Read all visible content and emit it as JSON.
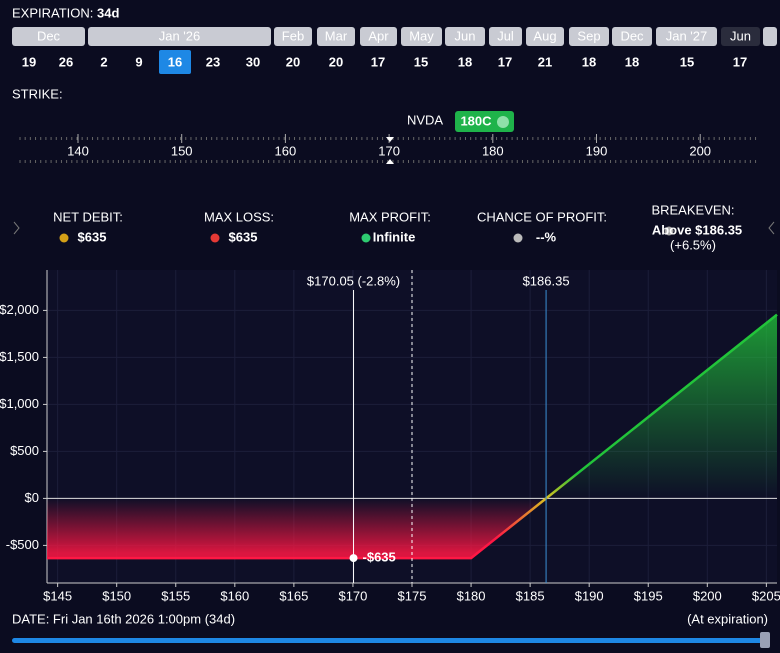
{
  "expiration": {
    "label": "EXPIRATION:",
    "days_left": "34d",
    "months": [
      {
        "label": "Dec",
        "days": [
          19,
          26
        ]
      },
      {
        "label": "Jan '26",
        "days": [
          2,
          9,
          16,
          23,
          30
        ]
      },
      {
        "label": "Feb",
        "days": [
          20
        ]
      },
      {
        "label": "Mar",
        "days": [
          20
        ]
      },
      {
        "label": "Apr",
        "days": [
          17
        ]
      },
      {
        "label": "May",
        "days": [
          15
        ]
      },
      {
        "label": "Jun",
        "days": [
          18
        ]
      },
      {
        "label": "Jul",
        "days": [
          17
        ]
      },
      {
        "label": "Aug",
        "days": [
          21
        ]
      },
      {
        "label": "Sep",
        "days": [
          18
        ]
      },
      {
        "label": "Dec",
        "days": [
          18
        ]
      },
      {
        "label": "Jan '27",
        "days": [
          15
        ]
      },
      {
        "label": "Jun",
        "days": [
          17
        ]
      }
    ]
  },
  "strike": {
    "label": "STRIKE:",
    "symbol": "NVDA",
    "selected": "180C",
    "ticks": [
      140,
      150,
      160,
      170,
      180,
      190,
      200
    ]
  },
  "stats": [
    {
      "label": "NET DEBIT:",
      "value": "$635"
    },
    {
      "label": "MAX LOSS:",
      "value": "$635"
    },
    {
      "label": "MAX PROFIT:",
      "value": "Infinite"
    },
    {
      "label": "CHANCE OF PROFIT:",
      "value": "--%"
    },
    {
      "label": "BREAKEVEN:",
      "value": "Above $186.35",
      "sub": "(+6.5%)"
    }
  ],
  "chart_data": {
    "type": "line",
    "series": [
      {
        "x": [
          144.1,
          180,
          205.9
        ],
        "values": [
          -635,
          -635,
          1955
        ]
      }
    ],
    "xlim": [
      144.1,
      205.9
    ],
    "ylim": [
      -900,
      2430
    ],
    "xticks": [
      {
        "value": 145,
        "label": "$145"
      },
      {
        "value": 150,
        "label": "$150"
      },
      {
        "value": 155,
        "label": "$155"
      },
      {
        "value": 160,
        "label": "$160"
      },
      {
        "value": 165,
        "label": "$165"
      },
      {
        "value": 170,
        "label": "$170"
      },
      {
        "value": 175,
        "label": "$175"
      },
      {
        "value": 180,
        "label": "$180"
      },
      {
        "value": 185,
        "label": "$185"
      },
      {
        "value": 190,
        "label": "$190"
      },
      {
        "value": 195,
        "label": "$195"
      },
      {
        "value": 200,
        "label": "$200"
      },
      {
        "value": 205,
        "label": "$205"
      }
    ],
    "yticks": [
      {
        "value": -500,
        "label": "-$500"
      },
      {
        "value": 0,
        "label": "$0"
      },
      {
        "value": 500,
        "label": "$500"
      },
      {
        "value": 1000,
        "label": "$1,000"
      },
      {
        "value": 1500,
        "label": "$1,500"
      },
      {
        "value": 2000,
        "label": "$2,000"
      }
    ],
    "grid": true,
    "markers": [
      {
        "x": 170.05,
        "label": "$170.05 (-2.8%)",
        "color": "#ffffff"
      },
      {
        "x": 175,
        "color": "#ffffff"
      },
      {
        "x": 186.35,
        "label": "$186.35",
        "color": "#3b8fd6"
      }
    ],
    "point": {
      "x": 170.05,
      "y": -635,
      "label": "-$635"
    }
  },
  "date_bar": {
    "label": "DATE: Fri Jan 16th 2026 1:00pm (34d)",
    "note": "(At expiration)"
  }
}
